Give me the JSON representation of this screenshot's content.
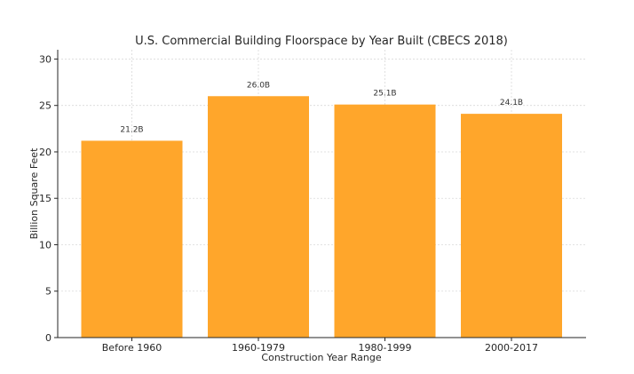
{
  "chart_data": {
    "type": "bar",
    "title": "U.S. Commercial Building Floorspace by Year Built (CBECS 2018)",
    "xlabel": "Construction Year Range",
    "ylabel": "Billion Square Feet",
    "categories": [
      "Before 1960",
      "1960-1979",
      "1980-1999",
      "2000-2017"
    ],
    "values": [
      21.2,
      26.0,
      25.1,
      24.1
    ],
    "data_labels": [
      "21.2B",
      "26.0B",
      "25.1B",
      "24.1B"
    ],
    "yticks": [
      0,
      5,
      10,
      15,
      20,
      25,
      30
    ],
    "ylim": [
      0,
      31
    ],
    "grid": true,
    "bar_color": "#FFA62B"
  }
}
